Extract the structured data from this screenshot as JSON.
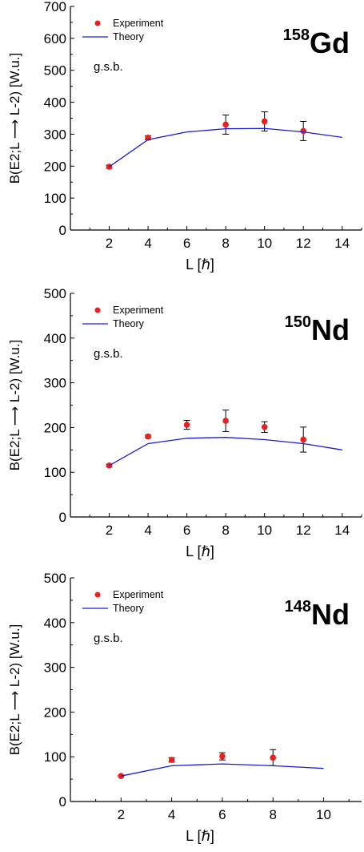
{
  "colors": {
    "experiment": "#e8201e",
    "theory": "#1a1ad6",
    "axis": "#000000"
  },
  "legend": {
    "experiment": "Experiment",
    "theory": "Theory"
  },
  "band_label": "g.s.b.",
  "ylabel": "B(E2;L ⟶ L-2) [W.u.]",
  "xlabel": "L [ℏ]",
  "chart_data": [
    {
      "type": "scatter",
      "nucleus": {
        "mass": "158",
        "symbol": "Gd"
      },
      "xlim": [
        0,
        15
      ],
      "ylim": [
        0,
        700
      ],
      "xticks": [
        2,
        4,
        6,
        8,
        10,
        12,
        14
      ],
      "yticks": [
        0,
        100,
        200,
        300,
        400,
        500,
        600,
        700
      ],
      "series": [
        {
          "name": "Experiment",
          "kind": "points",
          "x": [
            2,
            4,
            8,
            10,
            12
          ],
          "y": [
            198,
            289,
            330,
            340,
            310
          ],
          "err": [
            5,
            6,
            30,
            30,
            30
          ]
        },
        {
          "name": "Theory",
          "kind": "line",
          "x": [
            2,
            4,
            6,
            8,
            10,
            12,
            14
          ],
          "y": [
            198,
            283,
            307,
            317,
            318,
            307,
            290
          ]
        }
      ]
    },
    {
      "type": "scatter",
      "nucleus": {
        "mass": "150",
        "symbol": "Nd"
      },
      "xlim": [
        0,
        15
      ],
      "ylim": [
        0,
        500
      ],
      "xticks": [
        2,
        4,
        6,
        8,
        10,
        12,
        14
      ],
      "yticks": [
        0,
        100,
        200,
        300,
        400,
        500
      ],
      "series": [
        {
          "name": "Experiment",
          "kind": "points",
          "x": [
            2,
            4,
            6,
            8,
            10,
            12
          ],
          "y": [
            115,
            180,
            206,
            215,
            201,
            173
          ],
          "err": [
            3,
            3,
            10,
            24,
            12,
            28
          ]
        },
        {
          "name": "Theory",
          "kind": "line",
          "x": [
            2,
            4,
            6,
            8,
            10,
            12,
            14
          ],
          "y": [
            115,
            164,
            176,
            178,
            173,
            164,
            150
          ]
        }
      ]
    },
    {
      "type": "scatter",
      "nucleus": {
        "mass": "148",
        "symbol": "Nd"
      },
      "xlim": [
        0,
        11.5
      ],
      "ylim": [
        0,
        500
      ],
      "xticks": [
        2,
        4,
        6,
        8,
        10
      ],
      "yticks": [
        0,
        100,
        200,
        300,
        400,
        500
      ],
      "series": [
        {
          "name": "Experiment",
          "kind": "points",
          "x": [
            2,
            4,
            6,
            8
          ],
          "y": [
            57,
            93,
            101,
            98
          ],
          "err": [
            2,
            5,
            8,
            18
          ]
        },
        {
          "name": "Theory",
          "kind": "line",
          "x": [
            2,
            4,
            6,
            8,
            10
          ],
          "y": [
            57,
            80,
            84,
            80,
            74
          ]
        }
      ]
    }
  ]
}
